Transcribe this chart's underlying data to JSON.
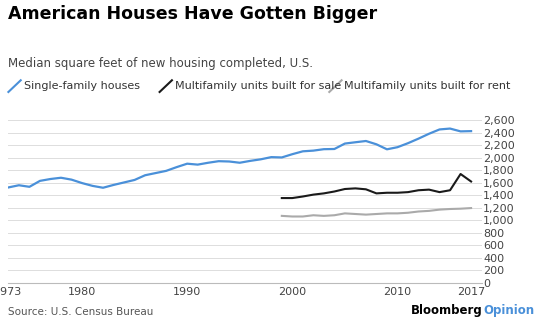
{
  "title": "American Houses Have Gotten Bigger",
  "subtitle": "Median square feet of new housing completed, U.S.",
  "source": "Source: U.S. Census Bureau",
  "single_family": {
    "years": [
      1973,
      1974,
      1975,
      1976,
      1977,
      1978,
      1979,
      1980,
      1981,
      1982,
      1983,
      1984,
      1985,
      1986,
      1987,
      1988,
      1989,
      1990,
      1991,
      1992,
      1993,
      1994,
      1995,
      1996,
      1997,
      1998,
      1999,
      2000,
      2001,
      2002,
      2003,
      2004,
      2005,
      2006,
      2007,
      2008,
      2009,
      2010,
      2011,
      2012,
      2013,
      2014,
      2015,
      2016,
      2017
    ],
    "values": [
      1525,
      1560,
      1535,
      1630,
      1660,
      1680,
      1650,
      1595,
      1550,
      1520,
      1565,
      1605,
      1645,
      1720,
      1755,
      1790,
      1850,
      1905,
      1890,
      1920,
      1945,
      1940,
      1920,
      1950,
      1975,
      2010,
      2005,
      2057,
      2103,
      2114,
      2137,
      2140,
      2227,
      2248,
      2268,
      2215,
      2135,
      2169,
      2233,
      2306,
      2384,
      2453,
      2467,
      2422,
      2426
    ],
    "color": "#4a90d9",
    "linewidth": 1.6
  },
  "multifamily_sale": {
    "years": [
      1999,
      2000,
      2001,
      2002,
      2003,
      2004,
      2005,
      2006,
      2007,
      2008,
      2009,
      2010,
      2011,
      2012,
      2013,
      2014,
      2015,
      2016,
      2017
    ],
    "values": [
      1355,
      1355,
      1380,
      1410,
      1430,
      1460,
      1500,
      1510,
      1495,
      1430,
      1440,
      1440,
      1450,
      1480,
      1490,
      1450,
      1480,
      1740,
      1620
    ],
    "color": "#1a1a1a",
    "linewidth": 1.5
  },
  "multifamily_rent": {
    "years": [
      1999,
      2000,
      2001,
      2002,
      2003,
      2004,
      2005,
      2006,
      2007,
      2008,
      2009,
      2010,
      2011,
      2012,
      2013,
      2014,
      2015,
      2016,
      2017
    ],
    "values": [
      1070,
      1060,
      1060,
      1080,
      1070,
      1080,
      1110,
      1100,
      1090,
      1100,
      1110,
      1110,
      1120,
      1140,
      1150,
      1170,
      1180,
      1185,
      1195
    ],
    "color": "#aaaaaa",
    "linewidth": 1.5
  },
  "xlim": [
    1973,
    2018
  ],
  "ylim": [
    0,
    2600
  ],
  "yticks": [
    0,
    200,
    400,
    600,
    800,
    1000,
    1200,
    1400,
    1600,
    1800,
    2000,
    2200,
    2400,
    2600
  ],
  "xticks": [
    1973,
    1980,
    1990,
    2000,
    2010,
    2017
  ],
  "background_color": "#ffffff",
  "grid_color": "#dddddd",
  "title_fontsize": 12.5,
  "subtitle_fontsize": 8.5,
  "legend_fontsize": 8,
  "tick_fontsize": 8,
  "source_fontsize": 7.5,
  "bloomberg_fontsize": 8.5,
  "legend_label_color": "#333333",
  "bloomberg_black": "#000000",
  "bloomberg_blue": "#4a90d9"
}
